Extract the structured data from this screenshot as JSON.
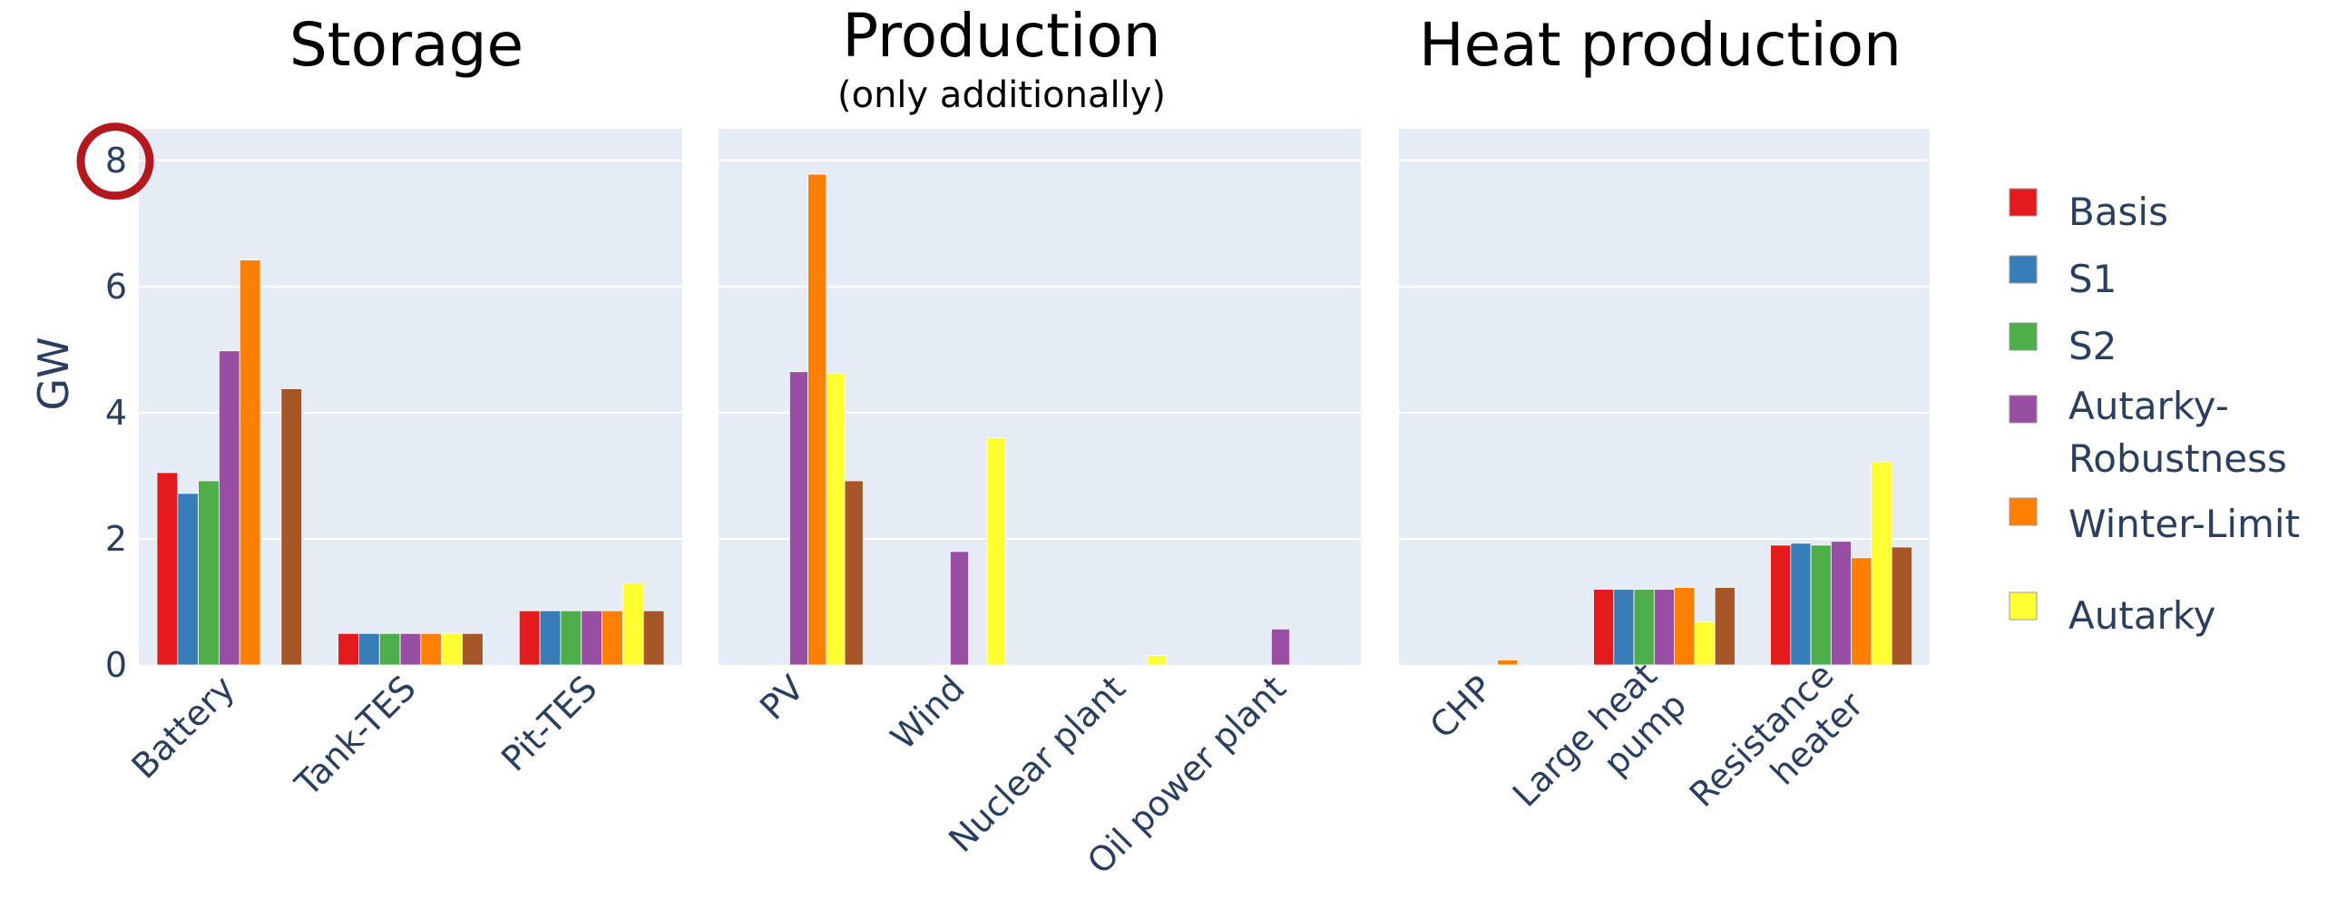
{
  "chart_data": {
    "type": "bar",
    "ylabel": "GW",
    "ylim": [
      0,
      8.5
    ],
    "yticks": [
      "0",
      "2",
      "4",
      "6",
      "8"
    ],
    "highlight": {
      "tick": "8",
      "color": "#b3181e"
    },
    "legend": {
      "placement": "right"
    },
    "series": [
      {
        "name": "Basis",
        "color": "#e41a1c"
      },
      {
        "name": "S1",
        "color": "#377eb8"
      },
      {
        "name": "S2",
        "color": "#4daf4a"
      },
      {
        "name": "Autarky-Robustness",
        "color": "#984ea3"
      },
      {
        "name": "Winter-Limit",
        "color": "#ff7f00"
      },
      {
        "name": "Autarky",
        "color": "#ffff33"
      },
      {
        "name": "",
        "color": "#a65628"
      }
    ],
    "legend_lines": [
      [
        "Basis"
      ],
      [
        "S1"
      ],
      [
        "S2"
      ],
      [
        "Autarky-",
        "Robustness"
      ],
      [
        "Winter-Limit"
      ],
      [
        "Autarky"
      ]
    ],
    "panels": [
      {
        "title": "Storage",
        "subtitle": "",
        "categories": [
          {
            "label": [
              "Battery"
            ],
            "values": [
              3.05,
              2.72,
              2.92,
              4.98,
              6.42,
              0,
              4.38
            ]
          },
          {
            "label": [
              "Tank-TES"
            ],
            "values": [
              0.5,
              0.5,
              0.5,
              0.5,
              0.5,
              0.5,
              0.5
            ]
          },
          {
            "label": [
              "Pit-TES"
            ],
            "values": [
              0.86,
              0.86,
              0.86,
              0.86,
              0.86,
              1.3,
              0.86
            ]
          }
        ]
      },
      {
        "title": "Production",
        "subtitle": "(only additionally)",
        "categories": [
          {
            "label": [
              "PV"
            ],
            "values": [
              0,
              0,
              0,
              4.65,
              7.78,
              4.62,
              2.92
            ]
          },
          {
            "label": [
              "Wind"
            ],
            "values": [
              0,
              0,
              0,
              1.8,
              0,
              3.6,
              0
            ]
          },
          {
            "label": [
              "Nuclear  plant"
            ],
            "values": [
              0,
              0,
              0,
              0,
              0,
              0.15,
              0
            ]
          },
          {
            "label": [
              "Oil power plant"
            ],
            "values": [
              0,
              0,
              0,
              0.57,
              0,
              0,
              0
            ]
          }
        ]
      },
      {
        "title": "Heat production",
        "subtitle": "",
        "categories": [
          {
            "label": [
              "CHP"
            ],
            "values": [
              0,
              0,
              0,
              0,
              0.08,
              0,
              0
            ]
          },
          {
            "label": [
              "Large heat",
              "pump"
            ],
            "values": [
              1.2,
              1.2,
              1.2,
              1.2,
              1.23,
              0.68,
              1.23
            ]
          },
          {
            "label": [
              "Resistance",
              "heater"
            ],
            "values": [
              1.9,
              1.93,
              1.9,
              1.96,
              1.7,
              3.22,
              1.87
            ]
          }
        ]
      }
    ]
  }
}
